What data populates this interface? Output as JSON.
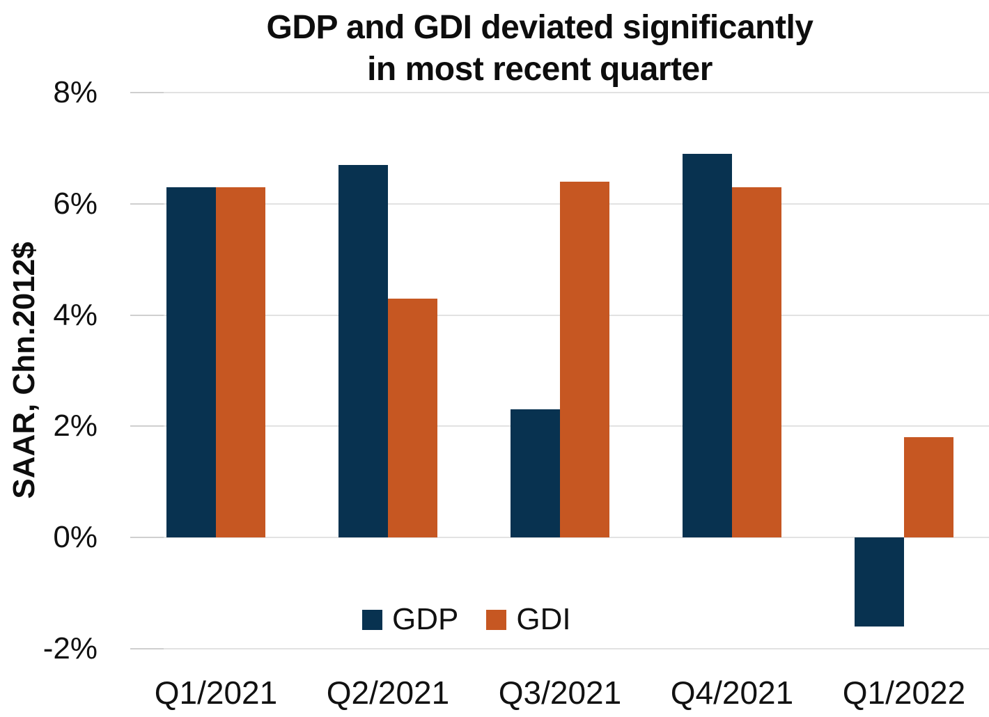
{
  "chart_data": {
    "type": "bar",
    "title_line1": "GDP and GDI deviated significantly",
    "title_line2": "in most recent quarter",
    "ylabel": "SAAR, Chn.2012$",
    "categories": [
      "Q1/2021",
      "Q2/2021",
      "Q3/2021",
      "Q4/2021",
      "Q1/2022"
    ],
    "series": [
      {
        "name": "GDP",
        "color": "#083250",
        "values": [
          6.3,
          6.7,
          2.3,
          6.9,
          -1.6
        ]
      },
      {
        "name": "GDI",
        "color": "#C65722",
        "values": [
          6.3,
          4.3,
          6.4,
          6.3,
          1.8
        ]
      }
    ],
    "y_ticks": [
      {
        "label": "8%",
        "value": 8
      },
      {
        "label": "6%",
        "value": 6
      },
      {
        "label": "4%",
        "value": 4
      },
      {
        "label": "2%",
        "value": 2
      },
      {
        "label": "0%",
        "value": 0
      },
      {
        "label": "-2%",
        "value": -2
      }
    ],
    "ylim": [
      -2,
      8
    ],
    "grid": true,
    "legend_position": "bottom-center-inside"
  },
  "colors": {
    "background": "#ffffff",
    "gridline": "#e2e2e2",
    "text": "#111111",
    "title_text": "#0d0d0d",
    "gdp_bar": "#083250",
    "gdi_bar": "#C65722"
  }
}
